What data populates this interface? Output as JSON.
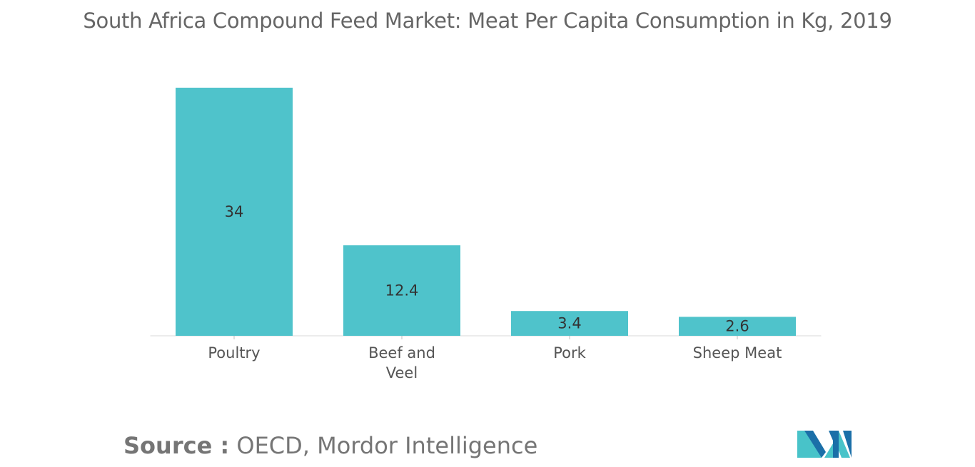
{
  "chart_data": {
    "type": "bar",
    "title": "South Africa Compound Feed Market: Meat Per Capita Consumption in Kg, 2019",
    "categories": [
      "Poultry",
      "Beef and Veel",
      "Pork",
      "Sheep Meat"
    ],
    "category_lines": [
      [
        "Poultry"
      ],
      [
        "Beef and",
        "Veel"
      ],
      [
        "Pork"
      ],
      [
        "Sheep Meat"
      ]
    ],
    "values": [
      34,
      12.4,
      3.4,
      2.6
    ],
    "value_labels": [
      "34",
      "12.4",
      "3.4",
      "2.6"
    ],
    "ylim": [
      0,
      34
    ],
    "xlabel": "",
    "ylabel": "",
    "grid": false,
    "legend": "none",
    "bar_color": "#4FC3CB"
  },
  "source": {
    "label": "Source :",
    "text": "OECD, Mordor Intelligence"
  },
  "logo_colors": [
    "#1B6FA8",
    "#48C3C9"
  ]
}
